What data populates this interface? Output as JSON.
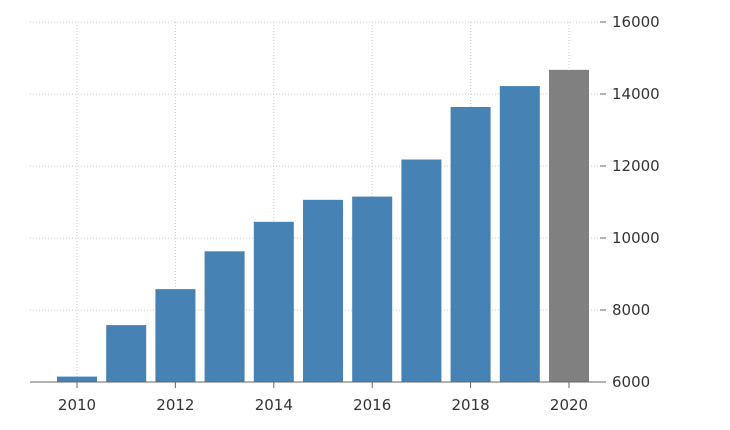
{
  "chart_data": {
    "type": "bar",
    "title": "",
    "xlabel": "",
    "ylabel": "",
    "categories": [
      "2010",
      "2011",
      "2012",
      "2013",
      "2014",
      "2015",
      "2016",
      "2017",
      "2018",
      "2019",
      "2020"
    ],
    "values": [
      6150,
      7580,
      8580,
      9630,
      10450,
      11060,
      11150,
      12180,
      13640,
      14220,
      14670
    ],
    "ylim": [
      6000,
      16000
    ],
    "yticks": [
      6000,
      8000,
      10000,
      12000,
      14000,
      16000
    ],
    "ytick_labels": [
      "6000",
      "8000",
      "10000",
      "12000",
      "14000",
      "16000"
    ],
    "xtick_labels": [
      "2010",
      "2012",
      "2014",
      "2016",
      "2018",
      "2020"
    ],
    "y_axis_side": "right",
    "grid": true,
    "legend": "none",
    "colors": {
      "bar": "#4682b4",
      "highlight_bar": "#808080",
      "grid": "#cccccc",
      "axis": "#666666",
      "text": "#333333"
    },
    "highlight_category": "2020"
  }
}
